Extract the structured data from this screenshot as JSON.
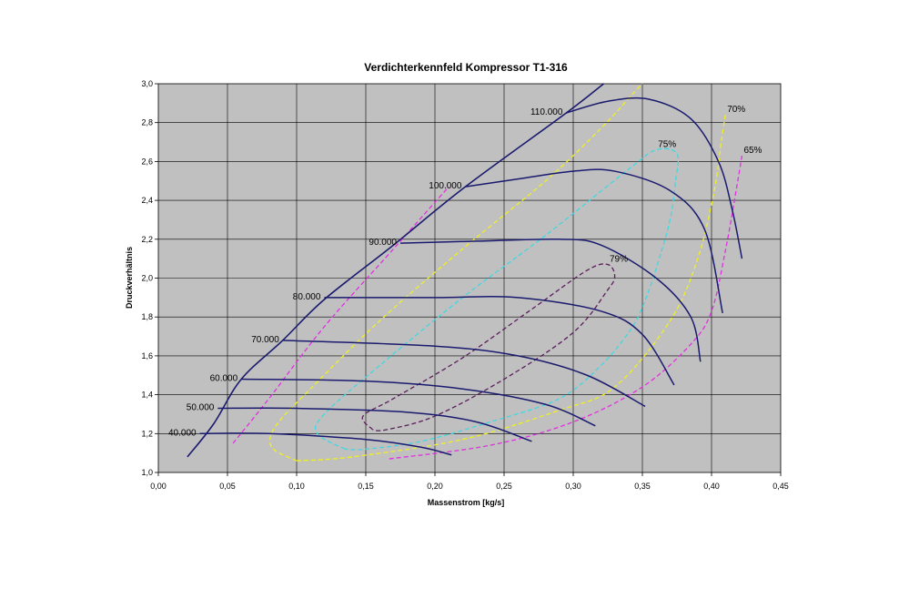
{
  "chart_data": {
    "type": "line",
    "title": "Verdichterkennfeld Kompressor T1-316",
    "xlabel": "Massenstrom [kg/s]",
    "ylabel": "Druckverhältnis",
    "xlim": [
      0,
      0.45
    ],
    "ylim": [
      1.0,
      3.0
    ],
    "x_ticks": [
      "0,00",
      "0,05",
      "0,10",
      "0,15",
      "0,20",
      "0,25",
      "0,30",
      "0,35",
      "0,40",
      "0,45"
    ],
    "y_ticks": [
      "1,0",
      "1,2",
      "1,4",
      "1,6",
      "1,8",
      "2,0",
      "2,2",
      "2,4",
      "2,6",
      "2,8",
      "3,0"
    ],
    "grid": true,
    "plot_background": "#c0c0c0",
    "surge_line": {
      "color": "#1a1a6e",
      "points": [
        [
          0.021,
          1.08
        ],
        [
          0.04,
          1.25
        ],
        [
          0.06,
          1.48
        ],
        [
          0.09,
          1.68
        ],
        [
          0.12,
          1.89
        ],
        [
          0.17,
          2.17
        ],
        [
          0.222,
          2.47
        ],
        [
          0.295,
          2.85
        ],
        [
          0.322,
          3.0
        ]
      ]
    },
    "speed_lines": [
      {
        "label": "40.000",
        "color": "#1a1a6e",
        "points": [
          [
            0.03,
            1.2
          ],
          [
            0.08,
            1.2
          ],
          [
            0.15,
            1.17
          ],
          [
            0.19,
            1.13
          ],
          [
            0.212,
            1.09
          ]
        ]
      },
      {
        "label": "50.000",
        "color": "#1a1a6e",
        "points": [
          [
            0.043,
            1.33
          ],
          [
            0.1,
            1.33
          ],
          [
            0.18,
            1.31
          ],
          [
            0.23,
            1.26
          ],
          [
            0.27,
            1.16
          ]
        ]
      },
      {
        "label": "60.000",
        "color": "#1a1a6e",
        "points": [
          [
            0.06,
            1.48
          ],
          [
            0.15,
            1.47
          ],
          [
            0.22,
            1.43
          ],
          [
            0.28,
            1.35
          ],
          [
            0.316,
            1.24
          ]
        ]
      },
      {
        "label": "70.000",
        "color": "#1a1a6e",
        "points": [
          [
            0.09,
            1.68
          ],
          [
            0.2,
            1.65
          ],
          [
            0.26,
            1.6
          ],
          [
            0.31,
            1.5
          ],
          [
            0.352,
            1.34
          ]
        ]
      },
      {
        "label": "80.000",
        "color": "#1a1a6e",
        "points": [
          [
            0.12,
            1.9
          ],
          [
            0.2,
            1.9
          ],
          [
            0.26,
            1.9
          ],
          [
            0.32,
            1.83
          ],
          [
            0.35,
            1.71
          ],
          [
            0.373,
            1.45
          ]
        ]
      },
      {
        "label": "90.000",
        "color": "#1a1a6e",
        "points": [
          [
            0.175,
            2.18
          ],
          [
            0.23,
            2.19
          ],
          [
            0.29,
            2.2
          ],
          [
            0.32,
            2.17
          ],
          [
            0.36,
            2.0
          ],
          [
            0.385,
            1.8
          ],
          [
            0.392,
            1.57
          ]
        ]
      },
      {
        "label": "100.000",
        "color": "#1a1a6e",
        "points": [
          [
            0.222,
            2.47
          ],
          [
            0.26,
            2.51
          ],
          [
            0.3,
            2.55
          ],
          [
            0.33,
            2.55
          ],
          [
            0.37,
            2.45
          ],
          [
            0.395,
            2.25
          ],
          [
            0.408,
            1.82
          ]
        ]
      },
      {
        "label": "110.000",
        "color": "#1a1a6e",
        "points": [
          [
            0.295,
            2.85
          ],
          [
            0.325,
            2.91
          ],
          [
            0.355,
            2.92
          ],
          [
            0.385,
            2.82
          ],
          [
            0.405,
            2.6
          ],
          [
            0.415,
            2.35
          ],
          [
            0.422,
            2.1
          ]
        ]
      }
    ],
    "efficiency_contours": [
      {
        "label": "79%",
        "color": "#5c1e5c",
        "points": [
          [
            0.155,
            1.22
          ],
          [
            0.148,
            1.29
          ],
          [
            0.17,
            1.38
          ],
          [
            0.22,
            1.59
          ],
          [
            0.27,
            1.84
          ],
          [
            0.31,
            2.04
          ],
          [
            0.325,
            2.07
          ],
          [
            0.33,
            2.01
          ],
          [
            0.325,
            1.94
          ],
          [
            0.3,
            1.72
          ],
          [
            0.25,
            1.48
          ],
          [
            0.2,
            1.29
          ],
          [
            0.165,
            1.22
          ],
          [
            0.155,
            1.22
          ]
        ]
      },
      {
        "label": "75%",
        "color": "#40d8e0",
        "points": [
          [
            0.135,
            1.12
          ],
          [
            0.115,
            1.2
          ],
          [
            0.12,
            1.3
          ],
          [
            0.16,
            1.55
          ],
          [
            0.22,
            1.9
          ],
          [
            0.28,
            2.22
          ],
          [
            0.34,
            2.56
          ],
          [
            0.36,
            2.66
          ],
          [
            0.375,
            2.64
          ],
          [
            0.374,
            2.5
          ],
          [
            0.37,
            2.3
          ],
          [
            0.36,
            2.05
          ],
          [
            0.35,
            1.85
          ],
          [
            0.34,
            1.72
          ],
          [
            0.32,
            1.55
          ],
          [
            0.29,
            1.38
          ],
          [
            0.24,
            1.26
          ],
          [
            0.19,
            1.16
          ],
          [
            0.15,
            1.12
          ],
          [
            0.135,
            1.12
          ]
        ]
      },
      {
        "label": "70%",
        "color": "#f0f020",
        "points": [
          [
            0.1,
            1.06
          ],
          [
            0.082,
            1.13
          ],
          [
            0.085,
            1.24
          ],
          [
            0.11,
            1.43
          ],
          [
            0.16,
            1.78
          ],
          [
            0.22,
            2.15
          ],
          [
            0.28,
            2.5
          ],
          [
            0.32,
            2.77
          ],
          [
            0.342,
            2.94
          ],
          [
            0.35,
            3.0
          ]
        ],
        "points2": [
          [
            0.1,
            1.06
          ],
          [
            0.14,
            1.08
          ],
          [
            0.22,
            1.17
          ],
          [
            0.29,
            1.32
          ],
          [
            0.33,
            1.44
          ],
          [
            0.37,
            1.78
          ],
          [
            0.39,
            2.1
          ],
          [
            0.402,
            2.45
          ],
          [
            0.407,
            2.7
          ],
          [
            0.41,
            2.84
          ]
        ]
      },
      {
        "label": "65%",
        "color": "#e030e0",
        "points": [
          [
            0.054,
            1.15
          ],
          [
            0.08,
            1.38
          ],
          [
            0.12,
            1.75
          ],
          [
            0.17,
            2.15
          ],
          [
            0.21,
            2.47
          ]
        ],
        "points2": [
          [
            0.167,
            1.07
          ],
          [
            0.24,
            1.14
          ],
          [
            0.3,
            1.26
          ],
          [
            0.35,
            1.44
          ],
          [
            0.385,
            1.66
          ],
          [
            0.4,
            1.83
          ],
          [
            0.41,
            2.14
          ],
          [
            0.418,
            2.46
          ],
          [
            0.422,
            2.63
          ]
        ]
      }
    ]
  }
}
